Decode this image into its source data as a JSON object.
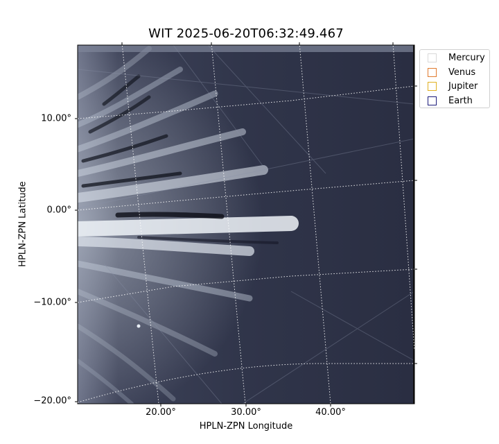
{
  "title": "WIT 2025-06-20T06:32:49.467",
  "axes": {
    "xlabel": "HPLN-ZPN Longitude",
    "ylabel": "HPLN-ZPN Latitude",
    "x_ticks": [
      "20.00°",
      "30.00°",
      "40.00°"
    ],
    "y_ticks": [
      "10.00°",
      "0.00°",
      "−10.00°",
      "−20.00°"
    ]
  },
  "legend": [
    {
      "label": "Mercury",
      "color": "#d9d9d9"
    },
    {
      "label": "Venus",
      "color": "#e07a2e"
    },
    {
      "label": "Jupiter",
      "color": "#e0b020"
    },
    {
      "label": "Earth",
      "color": "#1a1a7a"
    }
  ],
  "image": {
    "description": "coronagraph heliospheric imager frame",
    "background_color": "#2e3245",
    "streamer_color": "#dfe6ee",
    "grid_style": "dotted white"
  }
}
